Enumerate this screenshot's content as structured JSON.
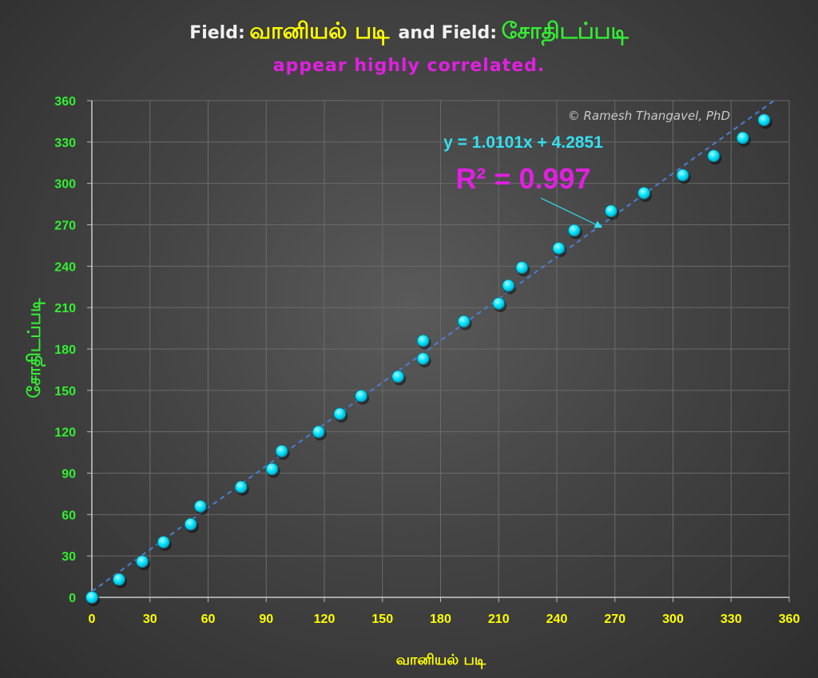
{
  "title": {
    "prefix1": "Field:",
    "field1": "வானியல் படி",
    "connector": "and Field:",
    "field2": "சோதிடப்படி"
  },
  "subtitle": "appear highly correlated.",
  "credit": "© Ramesh Thangavel, PhD",
  "colors": {
    "marker": "#00e5ff",
    "trendline": "#4a7fd4",
    "grid": "#6a6a6a",
    "x_ticks": "#ffff00",
    "y_ticks": "#33ee33",
    "equation": "#33e0f0",
    "r2": "#e020e0"
  },
  "chart_data": {
    "type": "scatter",
    "xlabel": "வானியல் படி",
    "ylabel": "சோதிடப்படி",
    "xlim": [
      0,
      360
    ],
    "ylim": [
      0,
      360
    ],
    "x_ticks": [
      0,
      30,
      60,
      90,
      120,
      150,
      180,
      210,
      240,
      270,
      300,
      330,
      360
    ],
    "y_ticks": [
      0,
      30,
      60,
      90,
      120,
      150,
      180,
      210,
      240,
      270,
      300,
      330,
      360
    ],
    "grid": true,
    "series": [
      {
        "points": [
          [
            0,
            0
          ],
          [
            14,
            13
          ],
          [
            26,
            26
          ],
          [
            37,
            40
          ],
          [
            51,
            53
          ],
          [
            56,
            66
          ],
          [
            77,
            80
          ],
          [
            93,
            93
          ],
          [
            98,
            106
          ],
          [
            117,
            120
          ],
          [
            128,
            133
          ],
          [
            139,
            146
          ],
          [
            158,
            160
          ],
          [
            171,
            173
          ],
          [
            171,
            186
          ],
          [
            192,
            200
          ],
          [
            210,
            213
          ],
          [
            215,
            226
          ],
          [
            222,
            239
          ],
          [
            241,
            253
          ],
          [
            249,
            266
          ],
          [
            268,
            280
          ],
          [
            285,
            293
          ],
          [
            305,
            306
          ],
          [
            321,
            320
          ],
          [
            336,
            333
          ],
          [
            347,
            346
          ]
        ]
      }
    ],
    "trendline": {
      "slope": 1.0101,
      "intercept": 4.2851,
      "equation": "y = 1.0101x + 4.2851",
      "r_squared": "R² = 0.997"
    }
  }
}
